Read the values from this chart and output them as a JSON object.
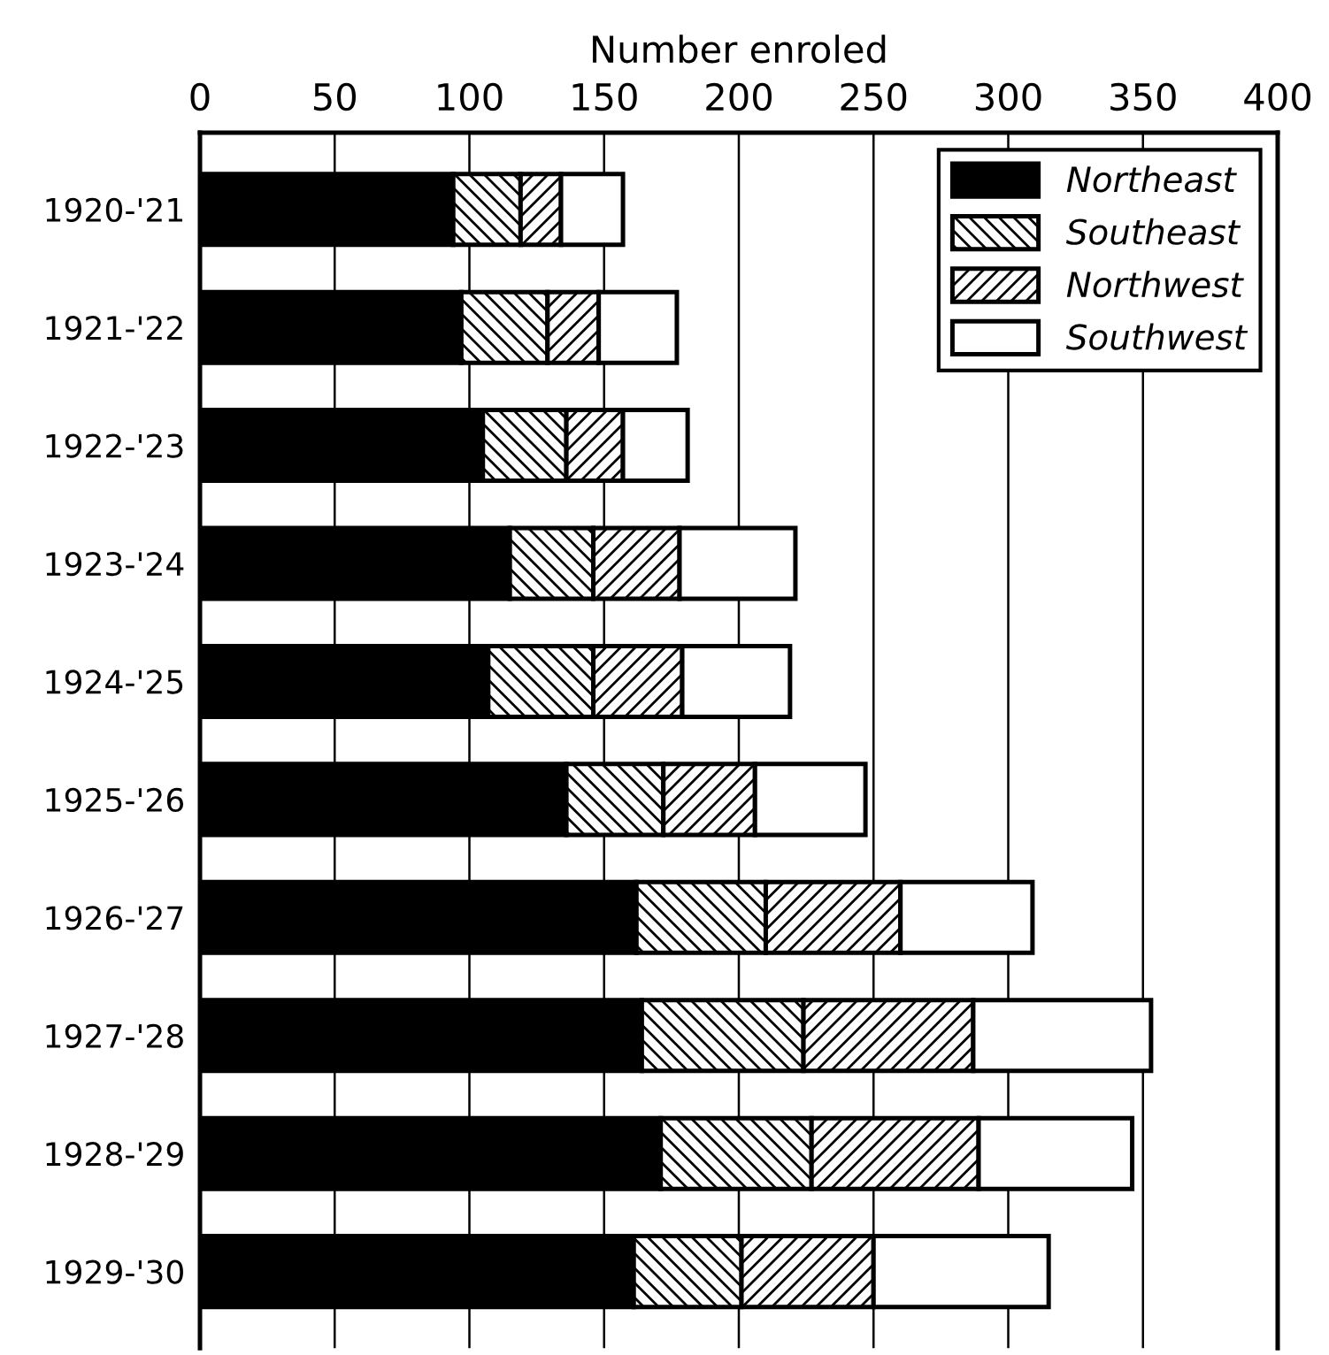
{
  "chart_data": {
    "type": "bar",
    "orientation": "horizontal",
    "stacked": true,
    "xlabel": "Number enroled",
    "categories": [
      "1920-'21",
      "1921-'22",
      "1922-'23",
      "1923-'24",
      "1924-'25",
      "1925-'26",
      "1926-'27",
      "1927-'28",
      "1928-'29",
      "1929-'30"
    ],
    "series": [
      {
        "name": "Northeast",
        "color": "#000000",
        "values": [
          94,
          97,
          105,
          115,
          107,
          136,
          162,
          164,
          171,
          161
        ]
      },
      {
        "name": "Southeast",
        "color": "#000000",
        "values": [
          25,
          32,
          31,
          31,
          39,
          36,
          48,
          60,
          56,
          40
        ]
      },
      {
        "name": "Northwest",
        "color": "#000000",
        "values": [
          15,
          19,
          21,
          32,
          33,
          34,
          50,
          63,
          62,
          49
        ]
      },
      {
        "name": "Southwest",
        "color": "#ffffff",
        "values": [
          23,
          29,
          24,
          43,
          40,
          41,
          49,
          66,
          57,
          65
        ]
      }
    ],
    "xlim": [
      0,
      400
    ],
    "xticks": [
      0,
      50,
      100,
      150,
      200,
      250,
      300,
      350,
      400
    ],
    "grid": "x",
    "legend": "top right"
  }
}
